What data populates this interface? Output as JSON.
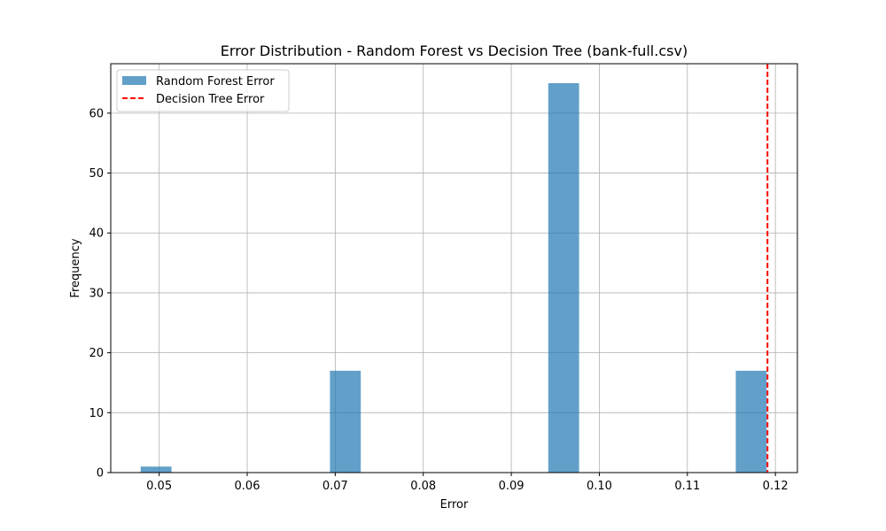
{
  "chart_data": {
    "type": "bar",
    "title": "Error Distribution - Random Forest vs Decision Tree (bank-full.csv)",
    "xlabel": "Error",
    "ylabel": "Frequency",
    "xlim": [
      0.0445,
      0.1225
    ],
    "ylim": [
      0,
      68.25
    ],
    "xticks": [
      0.05,
      0.06,
      0.07,
      0.08,
      0.09,
      0.1,
      0.11,
      0.12
    ],
    "xtick_labels": [
      "0.05",
      "0.06",
      "0.07",
      "0.08",
      "0.09",
      "0.10",
      "0.11",
      "0.12"
    ],
    "yticks": [
      0,
      10,
      20,
      30,
      40,
      50,
      60
    ],
    "ytick_labels": [
      "0",
      "10",
      "20",
      "30",
      "40",
      "50",
      "60"
    ],
    "grid": true,
    "legend_position": "top-left",
    "series": [
      {
        "name": "Random Forest Error",
        "kind": "histogram",
        "color": "#1f77b4",
        "opacity": 0.7,
        "bins": [
          {
            "x0": 0.0479,
            "x1": 0.0514,
            "count": 1
          },
          {
            "x0": 0.0694,
            "x1": 0.0729,
            "count": 17
          },
          {
            "x0": 0.0942,
            "x1": 0.0977,
            "count": 65
          },
          {
            "x0": 0.1155,
            "x1": 0.119,
            "count": 17
          }
        ]
      },
      {
        "name": "Decision Tree Error",
        "kind": "vline",
        "color": "#ff0000",
        "x": 0.1191
      }
    ]
  }
}
